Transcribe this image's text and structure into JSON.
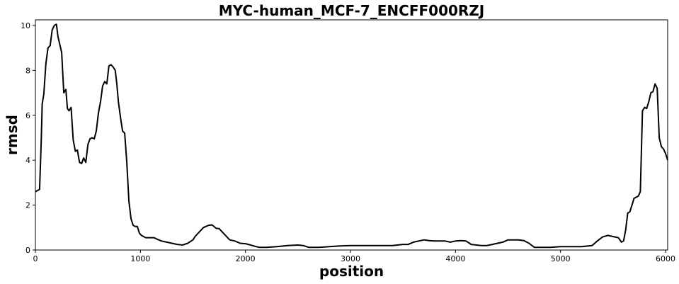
{
  "chart_data": {
    "type": "line",
    "title": "MYC-human_MCF-7_ENCFF000RZJ",
    "xlabel": "position",
    "ylabel": "rmsd",
    "xlim": [
      0,
      6020
    ],
    "ylim": [
      0,
      10.25
    ],
    "xticks": [
      0,
      1000,
      2000,
      3000,
      4000,
      5000,
      6000
    ],
    "yticks": [
      0,
      2,
      4,
      6,
      8,
      10
    ],
    "grid": false,
    "series": [
      {
        "color": "#000000",
        "x": [
          0,
          20,
          40,
          55,
          65,
          80,
          100,
          120,
          140,
          160,
          180,
          200,
          215,
          230,
          250,
          270,
          290,
          305,
          320,
          340,
          360,
          380,
          400,
          420,
          440,
          460,
          480,
          500,
          520,
          540,
          560,
          580,
          600,
          620,
          640,
          660,
          680,
          700,
          720,
          740,
          760,
          775,
          790,
          810,
          830,
          850,
          870,
          890,
          910,
          930,
          950,
          970,
          990,
          1010,
          1030,
          1050,
          1070,
          1100,
          1130,
          1160,
          1200,
          1250,
          1300,
          1350,
          1400,
          1450,
          1500,
          1520,
          1550,
          1600,
          1650,
          1680,
          1700,
          1720,
          1750,
          1800,
          1850,
          1900,
          1950,
          2000,
          2050,
          2100,
          2130,
          2150,
          2200,
          2300,
          2400,
          2500,
          2550,
          2600,
          2650,
          2700,
          2800,
          2900,
          3000,
          3100,
          3200,
          3300,
          3400,
          3500,
          3550,
          3600,
          3650,
          3700,
          3750,
          3800,
          3850,
          3900,
          3950,
          4000,
          4050,
          4100,
          4150,
          4200,
          4250,
          4300,
          4350,
          4400,
          4450,
          4500,
          4550,
          4600,
          4650,
          4700,
          4750,
          4800,
          4900,
          5000,
          5100,
          5200,
          5300,
          5350,
          5400,
          5450,
          5500,
          5550,
          5580,
          5600,
          5620,
          5640,
          5660,
          5680,
          5700,
          5720,
          5740,
          5760,
          5780,
          5800,
          5820,
          5840,
          5860,
          5880,
          5900,
          5920,
          5940,
          5960,
          5980,
          6000,
          6020
        ],
        "y": [
          2.6,
          2.65,
          2.7,
          4.8,
          6.5,
          6.95,
          8.3,
          9.0,
          9.1,
          9.8,
          10.0,
          10.05,
          9.5,
          9.2,
          8.8,
          7.0,
          7.15,
          6.3,
          6.2,
          6.35,
          4.9,
          4.4,
          4.45,
          3.9,
          3.85,
          4.1,
          3.9,
          4.7,
          4.95,
          5.0,
          4.95,
          5.3,
          6.1,
          6.6,
          7.3,
          7.5,
          7.4,
          8.2,
          8.25,
          8.15,
          8.0,
          7.4,
          6.6,
          5.9,
          5.3,
          5.2,
          3.9,
          2.2,
          1.4,
          1.1,
          1.05,
          1.05,
          0.75,
          0.65,
          0.6,
          0.55,
          0.55,
          0.55,
          0.55,
          0.48,
          0.4,
          0.35,
          0.3,
          0.25,
          0.22,
          0.3,
          0.45,
          0.6,
          0.75,
          1.0,
          1.1,
          1.12,
          1.05,
          0.97,
          0.95,
          0.7,
          0.45,
          0.4,
          0.3,
          0.28,
          0.22,
          0.15,
          0.12,
          0.12,
          0.12,
          0.15,
          0.2,
          0.22,
          0.2,
          0.12,
          0.12,
          0.12,
          0.15,
          0.18,
          0.2,
          0.2,
          0.2,
          0.2,
          0.2,
          0.25,
          0.25,
          0.35,
          0.4,
          0.45,
          0.42,
          0.4,
          0.4,
          0.4,
          0.35,
          0.4,
          0.42,
          0.4,
          0.25,
          0.22,
          0.2,
          0.2,
          0.25,
          0.3,
          0.35,
          0.45,
          0.45,
          0.45,
          0.42,
          0.3,
          0.12,
          0.12,
          0.12,
          0.15,
          0.15,
          0.15,
          0.2,
          0.4,
          0.58,
          0.65,
          0.6,
          0.55,
          0.35,
          0.4,
          0.9,
          1.65,
          1.7,
          2.0,
          2.3,
          2.35,
          2.4,
          2.6,
          6.2,
          6.35,
          6.3,
          6.6,
          7.0,
          7.05,
          7.4,
          7.2,
          5.0,
          4.6,
          4.5,
          4.3,
          4.0
        ]
      }
    ]
  }
}
